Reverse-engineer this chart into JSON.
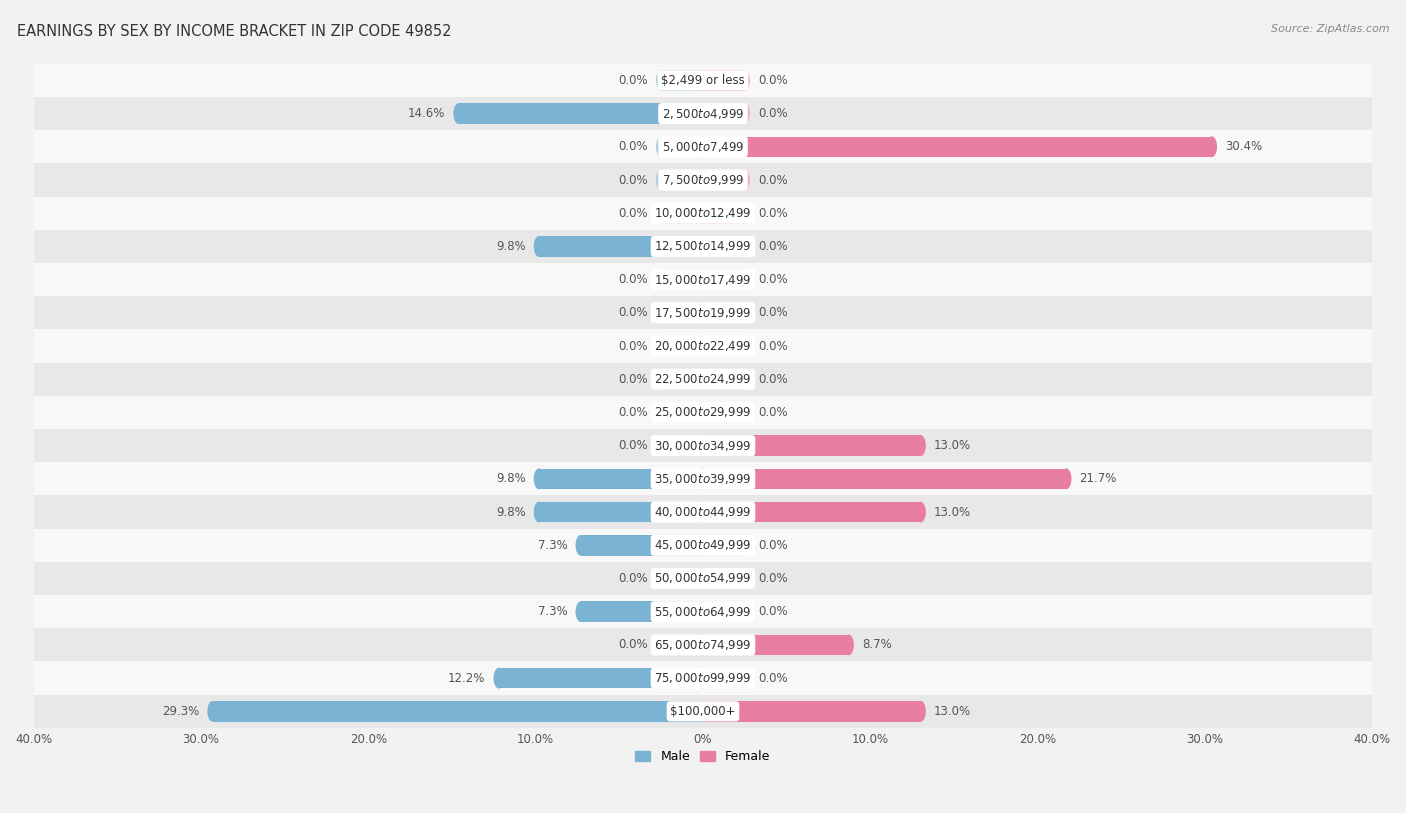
{
  "title": "EARNINGS BY SEX BY INCOME BRACKET IN ZIP CODE 49852",
  "source": "Source: ZipAtlas.com",
  "categories": [
    "$2,499 or less",
    "$2,500 to $4,999",
    "$5,000 to $7,499",
    "$7,500 to $9,999",
    "$10,000 to $12,499",
    "$12,500 to $14,999",
    "$15,000 to $17,499",
    "$17,500 to $19,999",
    "$20,000 to $22,499",
    "$22,500 to $24,999",
    "$25,000 to $29,999",
    "$30,000 to $34,999",
    "$35,000 to $39,999",
    "$40,000 to $44,999",
    "$45,000 to $49,999",
    "$50,000 to $54,999",
    "$55,000 to $64,999",
    "$65,000 to $74,999",
    "$75,000 to $99,999",
    "$100,000+"
  ],
  "male": [
    0.0,
    14.6,
    0.0,
    0.0,
    0.0,
    9.8,
    0.0,
    0.0,
    0.0,
    0.0,
    0.0,
    0.0,
    9.8,
    9.8,
    7.3,
    0.0,
    7.3,
    0.0,
    12.2,
    29.3
  ],
  "female": [
    0.0,
    0.0,
    30.4,
    0.0,
    0.0,
    0.0,
    0.0,
    0.0,
    0.0,
    0.0,
    0.0,
    13.0,
    21.7,
    13.0,
    0.0,
    0.0,
    0.0,
    8.7,
    0.0,
    13.0
  ],
  "male_color": "#7ab3d4",
  "female_color": "#e87fa0",
  "male_color_light": "#aecfdf",
  "female_color_light": "#f0b0c0",
  "male_label": "Male",
  "female_label": "Female",
  "axis_max": 40.0,
  "min_bar": 2.5,
  "background_color": "#f2f2f2",
  "row_alt_color": "#e8e8e8",
  "row_base_color": "#f8f8f8",
  "title_fontsize": 10.5,
  "label_fontsize": 8.5,
  "source_fontsize": 8,
  "legend_fontsize": 9,
  "tick_fontsize": 8.5,
  "value_fontsize": 8.5
}
